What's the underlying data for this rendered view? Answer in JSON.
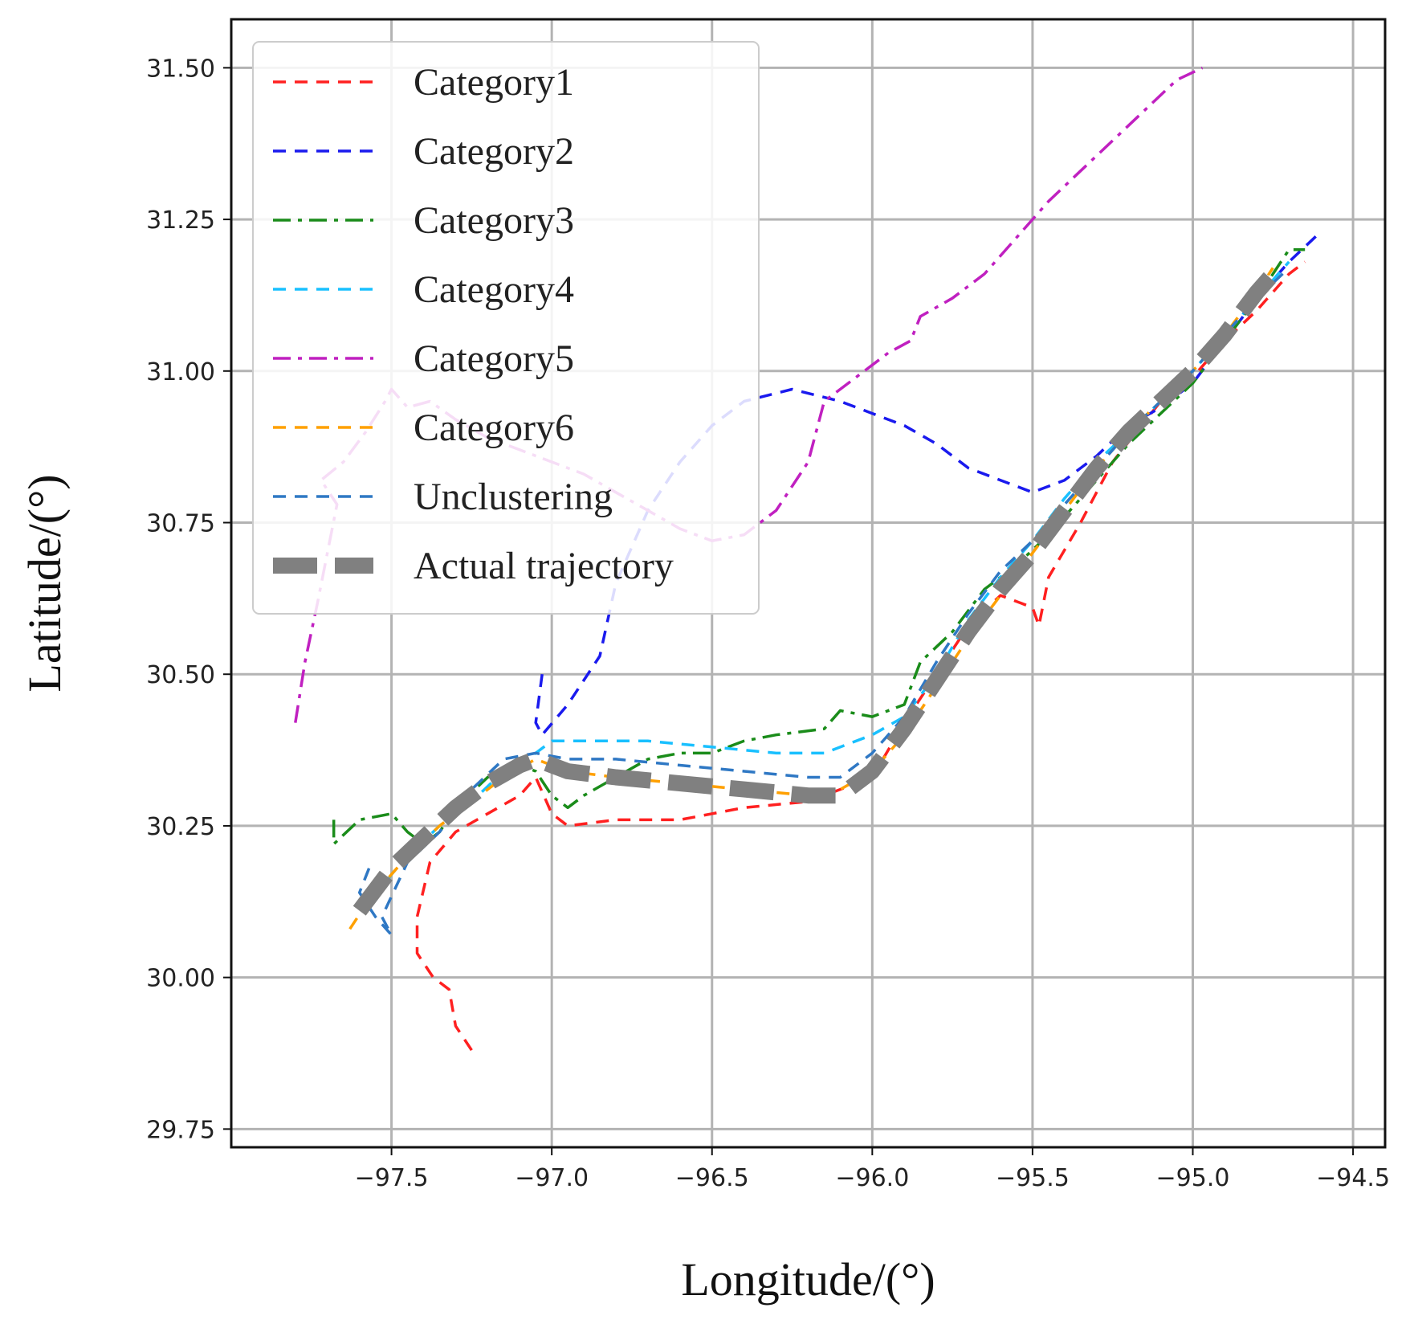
{
  "chart_data": {
    "type": "line",
    "xlabel": "Longitude/(°)",
    "ylabel": "Latitude/(°)",
    "xlim": [
      -98.0,
      -94.4
    ],
    "ylim": [
      29.72,
      31.58
    ],
    "xticks": [
      -97.5,
      -97.0,
      -96.5,
      -96.0,
      -95.5,
      -95.0,
      -94.5
    ],
    "xtick_labels": [
      "−97.5",
      "−97.0",
      "−96.5",
      "−96.0",
      "−95.5",
      "−95.0",
      "−94.5"
    ],
    "yticks": [
      29.75,
      30.0,
      30.25,
      30.5,
      30.75,
      31.0,
      31.25,
      31.5
    ],
    "ytick_labels": [
      "29.75",
      "30.00",
      "30.25",
      "30.50",
      "30.75",
      "31.00",
      "31.25",
      "31.50"
    ],
    "grid": true,
    "legend_position": "top-left",
    "series": [
      {
        "name": "Category1",
        "color": "#ff2020",
        "dash": "dashed",
        "points": [
          [
            -97.25,
            29.88
          ],
          [
            -97.3,
            29.92
          ],
          [
            -97.32,
            29.98
          ],
          [
            -97.37,
            30.0
          ],
          [
            -97.42,
            30.04
          ],
          [
            -97.42,
            30.1
          ],
          [
            -97.38,
            30.19
          ],
          [
            -97.3,
            30.24
          ],
          [
            -97.2,
            30.27
          ],
          [
            -97.1,
            30.3
          ],
          [
            -97.05,
            30.33
          ],
          [
            -97.0,
            30.27
          ],
          [
            -96.95,
            30.25
          ],
          [
            -96.8,
            30.26
          ],
          [
            -96.6,
            30.26
          ],
          [
            -96.4,
            30.28
          ],
          [
            -96.2,
            30.29
          ],
          [
            -96.0,
            30.33
          ],
          [
            -95.9,
            30.42
          ],
          [
            -95.8,
            30.5
          ],
          [
            -95.7,
            30.58
          ],
          [
            -95.6,
            30.63
          ],
          [
            -95.5,
            30.61
          ],
          [
            -95.48,
            30.58
          ],
          [
            -95.45,
            30.66
          ],
          [
            -95.35,
            30.75
          ],
          [
            -95.25,
            30.85
          ],
          [
            -95.1,
            30.95
          ],
          [
            -95.0,
            30.99
          ],
          [
            -94.9,
            31.05
          ],
          [
            -94.8,
            31.1
          ],
          [
            -94.7,
            31.16
          ],
          [
            -94.65,
            31.18
          ]
        ]
      },
      {
        "name": "Category2",
        "color": "#1a1aee",
        "dash": "dashed",
        "points": [
          [
            -97.03,
            30.5
          ],
          [
            -97.05,
            30.42
          ],
          [
            -97.03,
            30.4
          ],
          [
            -96.95,
            30.45
          ],
          [
            -96.85,
            30.53
          ],
          [
            -96.8,
            30.65
          ],
          [
            -96.7,
            30.77
          ],
          [
            -96.6,
            30.85
          ],
          [
            -96.5,
            30.91
          ],
          [
            -96.4,
            30.95
          ],
          [
            -96.25,
            30.97
          ],
          [
            -96.1,
            30.95
          ],
          [
            -96.0,
            30.93
          ],
          [
            -95.9,
            30.91
          ],
          [
            -95.8,
            30.88
          ],
          [
            -95.7,
            30.84
          ],
          [
            -95.6,
            30.82
          ],
          [
            -95.5,
            30.8
          ],
          [
            -95.4,
            30.82
          ],
          [
            -95.3,
            30.86
          ],
          [
            -95.2,
            30.91
          ],
          [
            -95.1,
            30.94
          ],
          [
            -95.0,
            30.98
          ],
          [
            -94.9,
            31.05
          ],
          [
            -94.8,
            31.12
          ],
          [
            -94.7,
            31.18
          ],
          [
            -94.6,
            31.23
          ]
        ]
      },
      {
        "name": "Category3",
        "color": "#1a8c1a",
        "dash": "dashdot",
        "points": [
          [
            -97.68,
            30.26
          ],
          [
            -97.68,
            30.22
          ],
          [
            -97.6,
            30.26
          ],
          [
            -97.5,
            30.27
          ],
          [
            -97.45,
            30.24
          ],
          [
            -97.4,
            30.22
          ],
          [
            -97.35,
            30.24
          ],
          [
            -97.3,
            30.28
          ],
          [
            -97.2,
            30.33
          ],
          [
            -97.1,
            30.35
          ],
          [
            -97.05,
            30.34
          ],
          [
            -97.0,
            30.3
          ],
          [
            -96.95,
            30.28
          ],
          [
            -96.9,
            30.3
          ],
          [
            -96.8,
            30.33
          ],
          [
            -96.7,
            30.36
          ],
          [
            -96.6,
            30.37
          ],
          [
            -96.5,
            30.37
          ],
          [
            -96.4,
            30.39
          ],
          [
            -96.3,
            30.4
          ],
          [
            -96.15,
            30.41
          ],
          [
            -96.1,
            30.44
          ],
          [
            -96.0,
            30.43
          ],
          [
            -95.9,
            30.45
          ],
          [
            -95.85,
            30.52
          ],
          [
            -95.75,
            30.57
          ],
          [
            -95.65,
            30.64
          ],
          [
            -95.55,
            30.68
          ],
          [
            -95.45,
            30.73
          ],
          [
            -95.3,
            30.82
          ],
          [
            -95.2,
            30.88
          ],
          [
            -95.1,
            30.93
          ],
          [
            -95.0,
            30.98
          ],
          [
            -94.9,
            31.05
          ],
          [
            -94.8,
            31.12
          ],
          [
            -94.7,
            31.2
          ],
          [
            -94.65,
            31.2
          ]
        ]
      },
      {
        "name": "Category4",
        "color": "#19c0ff",
        "dash": "dashed",
        "points": [
          [
            -97.55,
            30.13
          ],
          [
            -97.5,
            30.17
          ],
          [
            -97.45,
            30.2
          ],
          [
            -97.35,
            30.25
          ],
          [
            -97.25,
            30.29
          ],
          [
            -97.15,
            30.34
          ],
          [
            -97.05,
            30.37
          ],
          [
            -97.0,
            30.39
          ],
          [
            -96.9,
            30.39
          ],
          [
            -96.7,
            30.39
          ],
          [
            -96.5,
            30.38
          ],
          [
            -96.3,
            30.37
          ],
          [
            -96.15,
            30.37
          ],
          [
            -96.0,
            30.4
          ],
          [
            -95.9,
            30.43
          ],
          [
            -95.8,
            30.5
          ],
          [
            -95.7,
            30.59
          ],
          [
            -95.6,
            30.66
          ],
          [
            -95.5,
            30.72
          ],
          [
            -95.4,
            30.79
          ],
          [
            -95.3,
            30.85
          ],
          [
            -95.2,
            30.9
          ],
          [
            -95.1,
            30.95
          ],
          [
            -95.0,
            31.0
          ],
          [
            -94.9,
            31.06
          ],
          [
            -94.8,
            31.12
          ],
          [
            -94.7,
            31.18
          ]
        ]
      },
      {
        "name": "Category5",
        "color": "#c020c0",
        "dash": "dashdot",
        "points": [
          [
            -97.8,
            30.42
          ],
          [
            -97.77,
            30.52
          ],
          [
            -97.73,
            30.62
          ],
          [
            -97.7,
            30.7
          ],
          [
            -97.67,
            30.78
          ],
          [
            -97.72,
            30.82
          ],
          [
            -97.65,
            30.85
          ],
          [
            -97.58,
            30.9
          ],
          [
            -97.52,
            30.95
          ],
          [
            -97.5,
            30.97
          ],
          [
            -97.45,
            30.94
          ],
          [
            -97.38,
            30.95
          ],
          [
            -97.3,
            30.92
          ],
          [
            -97.2,
            30.89
          ],
          [
            -97.1,
            30.87
          ],
          [
            -97.0,
            30.85
          ],
          [
            -96.9,
            30.83
          ],
          [
            -96.8,
            30.8
          ],
          [
            -96.7,
            30.77
          ],
          [
            -96.6,
            30.74
          ],
          [
            -96.5,
            30.72
          ],
          [
            -96.4,
            30.73
          ],
          [
            -96.3,
            30.77
          ],
          [
            -96.2,
            30.85
          ],
          [
            -96.15,
            30.95
          ],
          [
            -96.05,
            30.99
          ],
          [
            -95.95,
            31.03
          ],
          [
            -95.88,
            31.05
          ],
          [
            -95.85,
            31.09
          ],
          [
            -95.75,
            31.12
          ],
          [
            -95.65,
            31.16
          ],
          [
            -95.55,
            31.22
          ],
          [
            -95.45,
            31.28
          ],
          [
            -95.35,
            31.33
          ],
          [
            -95.25,
            31.38
          ],
          [
            -95.15,
            31.43
          ],
          [
            -95.05,
            31.48
          ],
          [
            -94.97,
            31.5
          ]
        ]
      },
      {
        "name": "Category6",
        "color": "#ffa000",
        "dash": "dashed",
        "points": [
          [
            -97.63,
            30.08
          ],
          [
            -97.58,
            30.12
          ],
          [
            -97.5,
            30.17
          ],
          [
            -97.45,
            30.2
          ],
          [
            -97.35,
            30.25
          ],
          [
            -97.25,
            30.29
          ],
          [
            -97.15,
            30.33
          ],
          [
            -97.05,
            30.36
          ],
          [
            -96.95,
            30.34
          ],
          [
            -96.8,
            30.33
          ],
          [
            -96.6,
            30.32
          ],
          [
            -96.4,
            30.31
          ],
          [
            -96.2,
            30.3
          ],
          [
            -96.1,
            30.31
          ],
          [
            -96.0,
            30.34
          ],
          [
            -95.9,
            30.4
          ],
          [
            -95.8,
            30.48
          ],
          [
            -95.7,
            30.56
          ],
          [
            -95.6,
            30.63
          ],
          [
            -95.5,
            30.7
          ],
          [
            -95.4,
            30.77
          ],
          [
            -95.3,
            30.84
          ],
          [
            -95.2,
            30.9
          ],
          [
            -95.1,
            30.95
          ],
          [
            -95.0,
            31.0
          ],
          [
            -94.9,
            31.06
          ],
          [
            -94.8,
            31.13
          ],
          [
            -94.75,
            31.17
          ]
        ]
      },
      {
        "name": "Unclustering",
        "color": "#2f78c4",
        "dash": "dashed",
        "points": [
          [
            -97.57,
            30.18
          ],
          [
            -97.6,
            30.14
          ],
          [
            -97.55,
            30.1
          ],
          [
            -97.5,
            30.07
          ],
          [
            -97.53,
            30.1
          ],
          [
            -97.45,
            30.19
          ],
          [
            -97.35,
            30.24
          ],
          [
            -97.25,
            30.31
          ],
          [
            -97.15,
            30.36
          ],
          [
            -97.05,
            30.37
          ],
          [
            -96.95,
            30.36
          ],
          [
            -96.8,
            30.36
          ],
          [
            -96.6,
            30.35
          ],
          [
            -96.4,
            30.34
          ],
          [
            -96.2,
            30.33
          ],
          [
            -96.1,
            30.33
          ],
          [
            -96.0,
            30.37
          ],
          [
            -95.9,
            30.43
          ],
          [
            -95.8,
            30.52
          ],
          [
            -95.7,
            30.6
          ],
          [
            -95.6,
            30.67
          ],
          [
            -95.5,
            30.72
          ],
          [
            -95.4,
            30.78
          ],
          [
            -95.3,
            30.84
          ],
          [
            -95.2,
            30.9
          ],
          [
            -95.1,
            30.95
          ],
          [
            -95.0,
            31.0
          ],
          [
            -94.9,
            31.06
          ],
          [
            -94.8,
            31.12
          ],
          [
            -94.7,
            31.17
          ]
        ]
      },
      {
        "name": "Actual trajectory",
        "color": "#808080",
        "dash": "thick-dashed",
        "points": [
          [
            -97.6,
            30.11
          ],
          [
            -97.5,
            30.18
          ],
          [
            -97.4,
            30.23
          ],
          [
            -97.3,
            30.28
          ],
          [
            -97.2,
            30.32
          ],
          [
            -97.1,
            30.35
          ],
          [
            -97.05,
            30.36
          ],
          [
            -96.95,
            30.34
          ],
          [
            -96.8,
            30.33
          ],
          [
            -96.6,
            30.32
          ],
          [
            -96.4,
            30.31
          ],
          [
            -96.2,
            30.3
          ],
          [
            -96.1,
            30.3
          ],
          [
            -96.0,
            30.34
          ],
          [
            -95.9,
            30.41
          ],
          [
            -95.8,
            30.49
          ],
          [
            -95.7,
            30.57
          ],
          [
            -95.6,
            30.64
          ],
          [
            -95.5,
            30.7
          ],
          [
            -95.4,
            30.77
          ],
          [
            -95.3,
            30.84
          ],
          [
            -95.2,
            30.9
          ],
          [
            -95.1,
            30.95
          ],
          [
            -95.0,
            31.0
          ],
          [
            -94.9,
            31.06
          ],
          [
            -94.8,
            31.13
          ],
          [
            -94.75,
            31.16
          ]
        ]
      }
    ]
  }
}
